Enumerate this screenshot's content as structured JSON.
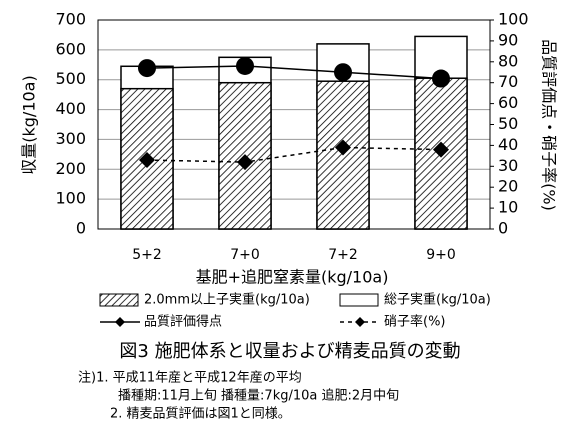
{
  "chart_data": {
    "type": "combo",
    "categories": [
      "5+2",
      "7+0",
      "7+2",
      "9+0"
    ],
    "x_label": "基肥+追肥窒素量(kg/10a)",
    "y_label": "収量(kg/10a)",
    "y2_label": "品質評価点・硝子率(%)",
    "ylim": [
      0,
      700
    ],
    "yticks": [
      0,
      100,
      200,
      300,
      400,
      500,
      600,
      700
    ],
    "y2lim": [
      0,
      100
    ],
    "y2ticks": [
      0,
      10,
      20,
      30,
      40,
      50,
      60,
      70,
      80,
      90,
      100
    ],
    "grid": true,
    "series": [
      {
        "name": "2.0mm以上子実重(kg/10a)",
        "type": "bar",
        "style": "hatch",
        "color": "#000000",
        "values": [
          470,
          490,
          495,
          505
        ]
      },
      {
        "name": "総子実重(kg/10a)",
        "type": "bar",
        "style": "white",
        "color": "#000000",
        "values": [
          545,
          575,
          620,
          645
        ]
      },
      {
        "name": "品質評価得点",
        "type": "line",
        "axis": "y2",
        "dash": false,
        "marker": "circle",
        "color": "#000000",
        "values": [
          77,
          78,
          75,
          72
        ]
      },
      {
        "name": "硝子率(%)",
        "type": "line",
        "axis": "y2",
        "dash": true,
        "marker": "diamond",
        "color": "#000000",
        "values": [
          33,
          32,
          39,
          38
        ]
      }
    ],
    "caption": "図3 施肥体系と収量および精麦品質の変動",
    "notes": [
      "注)1. 平成11年産と平成12年産の平均",
      "播種期:11月上旬 播種量:7kg/10a 追肥:2月中旬",
      "2. 精麦品質評価は図1と同様。"
    ]
  }
}
